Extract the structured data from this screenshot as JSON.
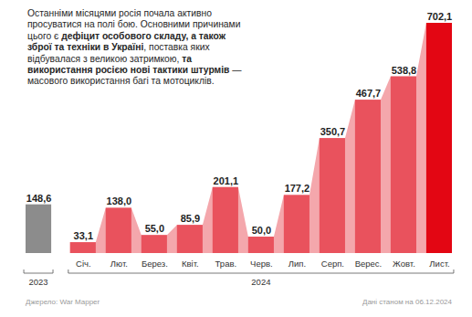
{
  "chart_data": {
    "type": "bar",
    "title": "Останніми місяцями росія почала активно просуватися на полі бою. Основними причинами цього є дефіцит особового складу, а також зброї та техніки в Україні, поставка яких відбувалася з великою затримкою, та використання росією нові тактики штурмів — масового використання багі та мотоциклів.",
    "title_bold": [
      "дефіцит особового складу, а також зброї та техніки в Україні",
      "та використання росією нові тактики штурмів"
    ],
    "source": "Джерело: War Mapper",
    "note": "Дані станом на 06.12.2024",
    "categories": [
      "2023",
      "Січ.",
      "Лют.",
      "Берез.",
      "Квіт.",
      "Трав.",
      "Черв.",
      "Лип.",
      "Серп.",
      "Верес.",
      "Жовт.",
      "Лист."
    ],
    "groups": [
      {
        "label": "2024",
        "categories": [
          "Січ.",
          "Лют.",
          "Берез.",
          "Квіт.",
          "Трав.",
          "Черв.",
          "Лип.",
          "Серп.",
          "Верес.",
          "Жовт.",
          "Лист."
        ]
      }
    ],
    "values": [
      148.6,
      33.1,
      138.0,
      55.0,
      85.9,
      201.1,
      50.0,
      177.2,
      350.7,
      467.7,
      538.8,
      702.1
    ],
    "value_labels": [
      "148,6",
      "33,1",
      "138,0",
      "55,0",
      "85,9",
      "201,1",
      "50,0",
      "177,2",
      "350,7",
      "467,7",
      "538,8",
      "702,1"
    ],
    "colors": [
      "#8c8c8c",
      "#e9525d",
      "#e9525d",
      "#e9525d",
      "#e9525d",
      "#e9525d",
      "#e9525d",
      "#e9525d",
      "#e9525d",
      "#e9525d",
      "#e9525d",
      "#e30613"
    ],
    "ylim": [
      0,
      702.1
    ],
    "data_labels": true,
    "tick_labels": "x",
    "grid": false
  }
}
